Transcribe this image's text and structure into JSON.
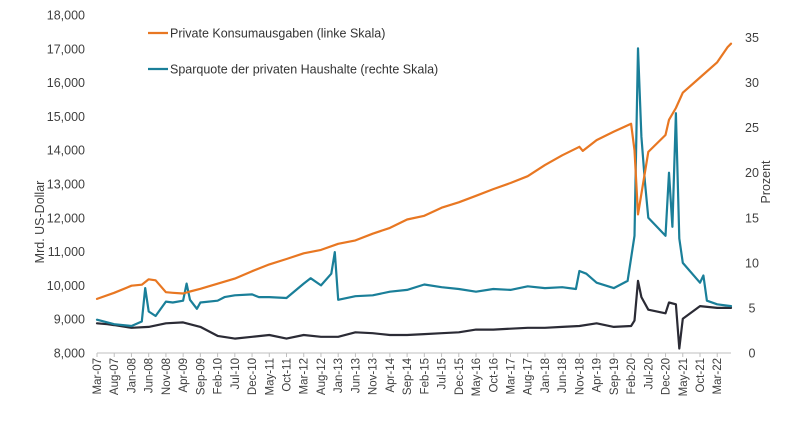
{
  "chart_data": {
    "type": "line",
    "left_axis": {
      "label": "Mrd. US-Dollar",
      "ylim": [
        8000,
        18000
      ],
      "ticks": [
        "8,000",
        "9,000",
        "10,000",
        "11,000",
        "12,000",
        "13,000",
        "14,000",
        "15,000",
        "16,000",
        "17,000",
        "18,000"
      ]
    },
    "right_axis": {
      "label": "Prozent",
      "ylim": [
        0,
        37.5
      ],
      "ticks": [
        "0",
        "5",
        "10",
        "15",
        "20",
        "25",
        "30",
        "35"
      ]
    },
    "x_ticks": [
      "Mar-07",
      "Aug-07",
      "Jan-08",
      "Jun-08",
      "Nov-08",
      "Apr-09",
      "Sep-09",
      "Feb-10",
      "Jul-10",
      "Dec-10",
      "May-11",
      "Oct-11",
      "Mar-12",
      "Aug-12",
      "Jan-13",
      "Jun-13",
      "Nov-13",
      "Apr-14",
      "Sep-14",
      "Feb-15",
      "Jul-15",
      "Dec-15",
      "May-16",
      "Oct-16",
      "Mar-17",
      "Aug-17",
      "Jan-18",
      "Jun-18",
      "Nov-18",
      "Apr-19",
      "Sep-19",
      "Feb-20",
      "Jul-20",
      "Dec-20",
      "May-21",
      "Oct-21",
      "Mar-22"
    ],
    "legend": {
      "placement": "top-left"
    },
    "series": [
      {
        "name": "Private Konsumausgaben (linke Skala)",
        "axis": "left",
        "color": "#e87722",
        "points": [
          [
            "Mar-07",
            9600
          ],
          [
            "Aug-07",
            9780
          ],
          [
            "Jan-08",
            9990
          ],
          [
            "Apr-08",
            10020
          ],
          [
            "Jun-08",
            10180
          ],
          [
            "Aug-08",
            10150
          ],
          [
            "Nov-08",
            9800
          ],
          [
            "Jan-09",
            9780
          ],
          [
            "Apr-09",
            9760
          ],
          [
            "Jun-09",
            9820
          ],
          [
            "Sep-09",
            9900
          ],
          [
            "Feb-10",
            10050
          ],
          [
            "Jul-10",
            10200
          ],
          [
            "Dec-10",
            10420
          ],
          [
            "May-11",
            10620
          ],
          [
            "Oct-11",
            10780
          ],
          [
            "Mar-12",
            10950
          ],
          [
            "Aug-12",
            11050
          ],
          [
            "Jan-13",
            11230
          ],
          [
            "Jun-13",
            11330
          ],
          [
            "Nov-13",
            11530
          ],
          [
            "Apr-14",
            11700
          ],
          [
            "Sep-14",
            11950
          ],
          [
            "Feb-15",
            12060
          ],
          [
            "Jul-15",
            12300
          ],
          [
            "Dec-15",
            12460
          ],
          [
            "May-16",
            12650
          ],
          [
            "Oct-16",
            12850
          ],
          [
            "Mar-17",
            13030
          ],
          [
            "Aug-17",
            13230
          ],
          [
            "Jan-18",
            13560
          ],
          [
            "Jun-18",
            13850
          ],
          [
            "Nov-18",
            14100
          ],
          [
            "Dec-18",
            13980
          ],
          [
            "Apr-19",
            14300
          ],
          [
            "Sep-19",
            14550
          ],
          [
            "Feb-20",
            14780
          ],
          [
            "Mar-20",
            14000
          ],
          [
            "Apr-20",
            12100
          ],
          [
            "Jul-20",
            13950
          ],
          [
            "Dec-20",
            14450
          ],
          [
            "Jan-21",
            14900
          ],
          [
            "Mar-21",
            15250
          ],
          [
            "May-21",
            15700
          ],
          [
            "Oct-21",
            16150
          ],
          [
            "Mar-22",
            16600
          ],
          [
            "Jun-22",
            17050
          ],
          [
            "Jul-22",
            17150
          ]
        ]
      },
      {
        "name": "Sparquote der privaten Haushalte (rechte Skala)",
        "axis": "right",
        "color": "#1a7f99",
        "points": [
          [
            "Mar-07",
            3.7
          ],
          [
            "Aug-07",
            3.2
          ],
          [
            "Jan-08",
            3.0
          ],
          [
            "Apr-08",
            3.5
          ],
          [
            "May-08",
            7.2
          ],
          [
            "Jun-08",
            4.6
          ],
          [
            "Aug-08",
            4.1
          ],
          [
            "Nov-08",
            5.7
          ],
          [
            "Jan-09",
            5.6
          ],
          [
            "Apr-09",
            5.8
          ],
          [
            "May-09",
            7.7
          ],
          [
            "Jun-09",
            5.9
          ],
          [
            "Aug-09",
            4.9
          ],
          [
            "Sep-09",
            5.6
          ],
          [
            "Feb-10",
            5.8
          ],
          [
            "Apr-10",
            6.2
          ],
          [
            "Jul-10",
            6.4
          ],
          [
            "Dec-10",
            6.5
          ],
          [
            "Feb-11",
            6.2
          ],
          [
            "May-11",
            6.2
          ],
          [
            "Oct-11",
            6.1
          ],
          [
            "Mar-12",
            7.7
          ],
          [
            "May-12",
            8.3
          ],
          [
            "Aug-12",
            7.5
          ],
          [
            "Nov-12",
            8.8
          ],
          [
            "Dec-12",
            11.2
          ],
          [
            "Jan-13",
            5.9
          ],
          [
            "Jun-13",
            6.3
          ],
          [
            "Nov-13",
            6.4
          ],
          [
            "Apr-14",
            6.8
          ],
          [
            "Sep-14",
            7.0
          ],
          [
            "Feb-15",
            7.6
          ],
          [
            "Jul-15",
            7.3
          ],
          [
            "Dec-15",
            7.1
          ],
          [
            "May-16",
            6.8
          ],
          [
            "Oct-16",
            7.1
          ],
          [
            "Mar-17",
            7.0
          ],
          [
            "Aug-17",
            7.4
          ],
          [
            "Jan-18",
            7.2
          ],
          [
            "Jun-18",
            7.3
          ],
          [
            "Oct-18",
            7.1
          ],
          [
            "Nov-18",
            9.1
          ],
          [
            "Jan-19",
            8.8
          ],
          [
            "Apr-19",
            7.8
          ],
          [
            "Sep-19",
            7.2
          ],
          [
            "Jan-20",
            8.0
          ],
          [
            "Mar-20",
            13.0
          ],
          [
            "Apr-20",
            33.8
          ],
          [
            "May-20",
            24.0
          ],
          [
            "Jun-20",
            19.0
          ],
          [
            "Jul-20",
            15.0
          ],
          [
            "Dec-20",
            13.0
          ],
          [
            "Jan-21",
            20.0
          ],
          [
            "Feb-21",
            14.0
          ],
          [
            "Mar-21",
            26.6
          ],
          [
            "Apr-21",
            12.7
          ],
          [
            "May-21",
            10.0
          ],
          [
            "Oct-21",
            7.8
          ],
          [
            "Nov-21",
            8.6
          ],
          [
            "Dec-21",
            5.8
          ],
          [
            "Mar-22",
            5.4
          ],
          [
            "Jul-22",
            5.2
          ]
        ]
      },
      {
        "name": "",
        "axis": "right",
        "color": "#2b2b35",
        "points": [
          [
            "Mar-07",
            3.3
          ],
          [
            "Jun-07",
            3.2
          ],
          [
            "Aug-07",
            3.1
          ],
          [
            "Jan-08",
            2.8
          ],
          [
            "Jun-08",
            2.9
          ],
          [
            "Nov-08",
            3.3
          ],
          [
            "Apr-09",
            3.4
          ],
          [
            "Sep-09",
            2.9
          ],
          [
            "Feb-10",
            1.9
          ],
          [
            "Jul-10",
            1.6
          ],
          [
            "Dec-10",
            1.8
          ],
          [
            "May-11",
            2.0
          ],
          [
            "Oct-11",
            1.6
          ],
          [
            "Mar-12",
            2.0
          ],
          [
            "Aug-12",
            1.8
          ],
          [
            "Jan-13",
            1.8
          ],
          [
            "Jun-13",
            2.3
          ],
          [
            "Nov-13",
            2.2
          ],
          [
            "Apr-14",
            2.0
          ],
          [
            "Sep-14",
            2.0
          ],
          [
            "Feb-15",
            2.1
          ],
          [
            "Jul-15",
            2.2
          ],
          [
            "Dec-15",
            2.3
          ],
          [
            "May-16",
            2.6
          ],
          [
            "Oct-16",
            2.6
          ],
          [
            "Mar-17",
            2.7
          ],
          [
            "Aug-17",
            2.8
          ],
          [
            "Jan-18",
            2.8
          ],
          [
            "Jun-18",
            2.9
          ],
          [
            "Nov-18",
            3.0
          ],
          [
            "Apr-19",
            3.3
          ],
          [
            "Sep-19",
            2.9
          ],
          [
            "Feb-20",
            3.0
          ],
          [
            "Mar-20",
            3.6
          ],
          [
            "Apr-20",
            8.0
          ],
          [
            "May-20",
            6.2
          ],
          [
            "Jul-20",
            4.8
          ],
          [
            "Dec-20",
            4.4
          ],
          [
            "Jan-21",
            5.6
          ],
          [
            "Mar-21",
            5.4
          ],
          [
            "Apr-21",
            0.5
          ],
          [
            "May-21",
            3.8
          ],
          [
            "Oct-21",
            5.2
          ],
          [
            "Mar-22",
            5.0
          ],
          [
            "Jul-22",
            5.0
          ]
        ]
      }
    ]
  }
}
